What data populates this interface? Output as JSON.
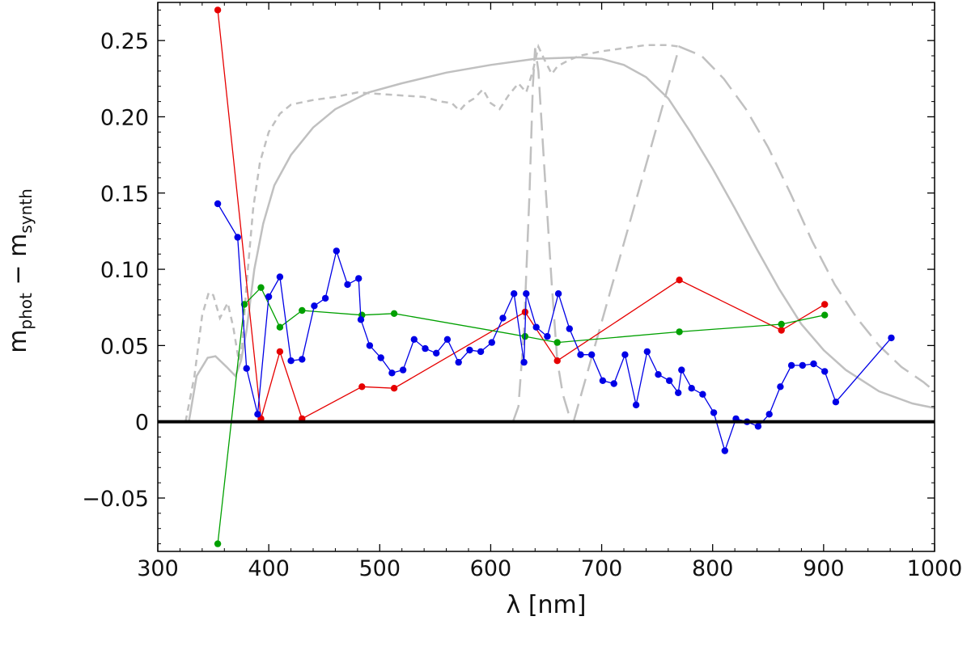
{
  "chart_data": {
    "type": "line",
    "title": "",
    "xlabel": "λ [nm]",
    "ylabel": "m_phot − m_synth",
    "ylabel_parts": {
      "base": "m",
      "sub1": "phot",
      "minus": " − ",
      "base2": "m",
      "sub2": "synth"
    },
    "xlim": [
      300,
      1000
    ],
    "ylim": [
      -0.085,
      0.275
    ],
    "xticks": [
      300,
      400,
      500,
      600,
      700,
      800,
      900,
      1000
    ],
    "xtick_labels": [
      "300",
      "400",
      "500",
      "600",
      "700",
      "800",
      "900",
      "1000"
    ],
    "yticks": [
      -0.05,
      0,
      0.05,
      0.1,
      0.15,
      0.2,
      0.25
    ],
    "ytick_labels": [
      "−0.05",
      "0",
      "0.05",
      "0.10",
      "0.15",
      "0.20",
      "0.25"
    ],
    "zero_line": 0,
    "colors": {
      "red": "#e60000",
      "green": "#00a000",
      "blue": "#0000e6",
      "filter": "#c0c0c0",
      "axis": "#000000"
    },
    "series": [
      {
        "name": "red",
        "color": "#e60000",
        "points": [
          [
            354,
            0.27
          ],
          [
            393,
            0.002
          ],
          [
            410,
            0.046
          ],
          [
            430,
            0.002
          ],
          [
            484,
            0.023
          ],
          [
            513,
            0.022
          ],
          [
            631,
            0.072
          ],
          [
            660,
            0.04
          ],
          [
            770,
            0.093
          ],
          [
            862,
            0.06
          ],
          [
            901,
            0.077
          ]
        ]
      },
      {
        "name": "green",
        "color": "#00a000",
        "points": [
          [
            354,
            -0.08
          ],
          [
            378,
            0.077
          ],
          [
            393,
            0.088
          ],
          [
            410,
            0.062
          ],
          [
            430,
            0.073
          ],
          [
            484,
            0.07
          ],
          [
            513,
            0.071
          ],
          [
            631,
            0.056
          ],
          [
            660,
            0.052
          ],
          [
            770,
            0.059
          ],
          [
            862,
            0.064
          ],
          [
            901,
            0.07
          ]
        ]
      },
      {
        "name": "blue",
        "color": "#0000e6",
        "points": [
          [
            354,
            0.143
          ],
          [
            372,
            0.121
          ],
          [
            380,
            0.035
          ],
          [
            390,
            0.005
          ],
          [
            400,
            0.082
          ],
          [
            410,
            0.095
          ],
          [
            420,
            0.04
          ],
          [
            430,
            0.041
          ],
          [
            441,
            0.076
          ],
          [
            451,
            0.081
          ],
          [
            461,
            0.112
          ],
          [
            471,
            0.09
          ],
          [
            481,
            0.094
          ],
          [
            483,
            0.067
          ],
          [
            491,
            0.05
          ],
          [
            501,
            0.042
          ],
          [
            511,
            0.032
          ],
          [
            521,
            0.034
          ],
          [
            531,
            0.054
          ],
          [
            541,
            0.048
          ],
          [
            551,
            0.045
          ],
          [
            561,
            0.054
          ],
          [
            571,
            0.039
          ],
          [
            581,
            0.047
          ],
          [
            591,
            0.046
          ],
          [
            601,
            0.052
          ],
          [
            611,
            0.068
          ],
          [
            621,
            0.084
          ],
          [
            630,
            0.039
          ],
          [
            632,
            0.084
          ],
          [
            641,
            0.062
          ],
          [
            651,
            0.056
          ],
          [
            661,
            0.084
          ],
          [
            671,
            0.061
          ],
          [
            681,
            0.044
          ],
          [
            691,
            0.044
          ],
          [
            701,
            0.027
          ],
          [
            711,
            0.025
          ],
          [
            721,
            0.044
          ],
          [
            731,
            0.011
          ],
          [
            741,
            0.046
          ],
          [
            751,
            0.031
          ],
          [
            761,
            0.027
          ],
          [
            769,
            0.019
          ],
          [
            772,
            0.034
          ],
          [
            781,
            0.022
          ],
          [
            791,
            0.018
          ],
          [
            801,
            0.006
          ],
          [
            811,
            -0.019
          ],
          [
            821,
            0.002
          ],
          [
            831,
            0.0
          ],
          [
            841,
            -0.003
          ],
          [
            851,
            0.005
          ],
          [
            861,
            0.023
          ],
          [
            871,
            0.037
          ],
          [
            881,
            0.037
          ],
          [
            891,
            0.038
          ],
          [
            901,
            0.033
          ],
          [
            911,
            0.013
          ],
          [
            961,
            0.055
          ]
        ]
      }
    ],
    "filter_curves": [
      {
        "name": "filter-solid",
        "style": "solid",
        "points": [
          [
            328,
            0.0
          ],
          [
            335,
            0.03
          ],
          [
            345,
            0.042
          ],
          [
            352,
            0.043
          ],
          [
            362,
            0.036
          ],
          [
            370,
            0.03
          ],
          [
            375,
            0.04
          ],
          [
            380,
            0.06
          ],
          [
            387,
            0.1
          ],
          [
            395,
            0.13
          ],
          [
            405,
            0.155
          ],
          [
            420,
            0.175
          ],
          [
            440,
            0.193
          ],
          [
            460,
            0.205
          ],
          [
            490,
            0.216
          ],
          [
            520,
            0.222
          ],
          [
            560,
            0.229
          ],
          [
            600,
            0.234
          ],
          [
            640,
            0.238
          ],
          [
            680,
            0.239
          ],
          [
            700,
            0.238
          ],
          [
            720,
            0.234
          ],
          [
            740,
            0.226
          ],
          [
            760,
            0.212
          ],
          [
            780,
            0.19
          ],
          [
            800,
            0.166
          ],
          [
            820,
            0.14
          ],
          [
            840,
            0.113
          ],
          [
            860,
            0.087
          ],
          [
            880,
            0.064
          ],
          [
            900,
            0.047
          ],
          [
            920,
            0.034
          ],
          [
            950,
            0.02
          ],
          [
            980,
            0.012
          ],
          [
            1000,
            0.009
          ]
        ]
      },
      {
        "name": "filter-dashed-short",
        "style": "short-dash",
        "points": [
          [
            325,
            0.0
          ],
          [
            333,
            0.03
          ],
          [
            340,
            0.07
          ],
          [
            346,
            0.085
          ],
          [
            350,
            0.083
          ],
          [
            356,
            0.068
          ],
          [
            363,
            0.078
          ],
          [
            368,
            0.062
          ],
          [
            373,
            0.04
          ],
          [
            376,
            0.05
          ],
          [
            380,
            0.09
          ],
          [
            386,
            0.14
          ],
          [
            392,
            0.17
          ],
          [
            400,
            0.19
          ],
          [
            410,
            0.202
          ],
          [
            420,
            0.208
          ],
          [
            440,
            0.211
          ],
          [
            460,
            0.213
          ],
          [
            480,
            0.216
          ],
          [
            500,
            0.215
          ],
          [
            520,
            0.214
          ],
          [
            540,
            0.213
          ],
          [
            555,
            0.21
          ],
          [
            565,
            0.209
          ],
          [
            572,
            0.204
          ],
          [
            578,
            0.209
          ],
          [
            585,
            0.212
          ],
          [
            593,
            0.218
          ],
          [
            600,
            0.209
          ],
          [
            608,
            0.205
          ],
          [
            616,
            0.214
          ],
          [
            625,
            0.222
          ],
          [
            632,
            0.216
          ],
          [
            638,
            0.23
          ],
          [
            643,
            0.246
          ],
          [
            648,
            0.238
          ],
          [
            655,
            0.228
          ],
          [
            660,
            0.233
          ],
          [
            670,
            0.237
          ],
          [
            680,
            0.24
          ],
          [
            700,
            0.243
          ],
          [
            720,
            0.245
          ],
          [
            740,
            0.247
          ],
          [
            760,
            0.247
          ],
          [
            770,
            0.246
          ]
        ]
      },
      {
        "name": "filter-dashed-long",
        "style": "long-dash",
        "points": [
          [
            620,
            0.0
          ],
          [
            625,
            0.01
          ],
          [
            630,
            0.06
          ],
          [
            635,
            0.15
          ],
          [
            638,
            0.22
          ],
          [
            640,
            0.245
          ],
          [
            643,
            0.23
          ],
          [
            648,
            0.17
          ],
          [
            655,
            0.09
          ],
          [
            660,
            0.04
          ],
          [
            665,
            0.018
          ],
          [
            670,
            0.006
          ],
          [
            675,
            0.001
          ],
          [
            770,
            0.246
          ],
          [
            790,
            0.24
          ],
          [
            810,
            0.225
          ],
          [
            830,
            0.205
          ],
          [
            850,
            0.18
          ],
          [
            870,
            0.15
          ],
          [
            890,
            0.118
          ],
          [
            910,
            0.09
          ],
          [
            930,
            0.068
          ],
          [
            950,
            0.05
          ],
          [
            970,
            0.036
          ],
          [
            990,
            0.026
          ],
          [
            1000,
            0.02
          ]
        ]
      }
    ]
  }
}
